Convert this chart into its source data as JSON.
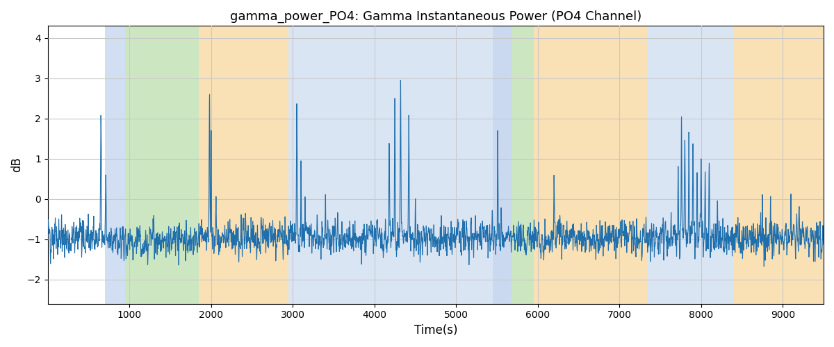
{
  "title": "gamma_power_PO4: Gamma Instantaneous Power (PO4 Channel)",
  "xlabel": "Time(s)",
  "ylabel": "dB",
  "xlim": [
    0,
    9500
  ],
  "ylim": [
    -2.6,
    4.3
  ],
  "line_color": "#1f6fad",
  "line_width": 0.8,
  "bg_color": "#ffffff",
  "grid_color": "#c8c8c8",
  "regions": [
    {
      "start": 700,
      "end": 950,
      "color": "#aec6e8",
      "alpha": 0.55
    },
    {
      "start": 950,
      "end": 1850,
      "color": "#90c878",
      "alpha": 0.45
    },
    {
      "start": 1850,
      "end": 2950,
      "color": "#f5c878",
      "alpha": 0.55
    },
    {
      "start": 2950,
      "end": 5450,
      "color": "#aec6e8",
      "alpha": 0.45
    },
    {
      "start": 5450,
      "end": 5680,
      "color": "#aec6e8",
      "alpha": 0.65
    },
    {
      "start": 5680,
      "end": 5950,
      "color": "#90c878",
      "alpha": 0.45
    },
    {
      "start": 5950,
      "end": 7350,
      "color": "#f5c878",
      "alpha": 0.55
    },
    {
      "start": 7350,
      "end": 8400,
      "color": "#aec6e8",
      "alpha": 0.45
    },
    {
      "start": 8400,
      "end": 9500,
      "color": "#f5c878",
      "alpha": 0.55
    }
  ],
  "yticks": [
    -2,
    -1,
    0,
    1,
    2,
    3,
    4
  ],
  "xticks": [
    1000,
    2000,
    3000,
    4000,
    5000,
    6000,
    7000,
    8000,
    9000
  ],
  "seed": 12345,
  "n_points": 9500
}
